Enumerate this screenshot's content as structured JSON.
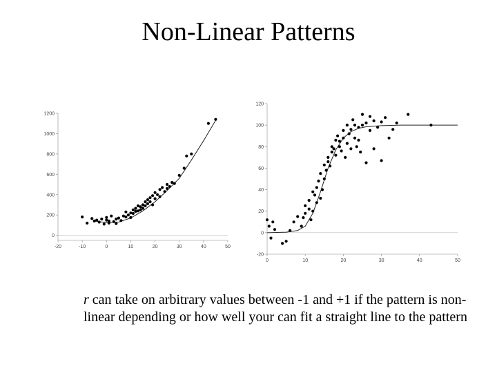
{
  "title": "Non-Linear Patterns",
  "body": {
    "variable": "r",
    "text": " can take on arbitrary values between -1 and +1 if the pattern is non-linear depending or how well your can fit a straight line to the pattern"
  },
  "chart_data": [
    {
      "type": "scatter",
      "title": "",
      "xlabel": "",
      "ylabel": "",
      "xlim": [
        -20,
        50
      ],
      "ylim": [
        -50,
        1200
      ],
      "x_ticks": [
        -20,
        -10,
        0,
        10,
        20,
        30,
        40,
        50
      ],
      "y_ticks": [
        0,
        200,
        400,
        600,
        800,
        1000,
        1200
      ],
      "x_tick_labels": [
        "-20",
        "-10",
        "0",
        "10",
        "20",
        "30",
        "40",
        "50"
      ],
      "y_tick_labels": [
        "0",
        "200",
        "400",
        "600",
        "800",
        "1000",
        "1200"
      ],
      "grid": false,
      "fit_curve": {
        "shape": "quadratic",
        "x": [
          -5,
          0,
          5,
          10,
          15,
          20,
          25,
          30,
          35,
          40,
          45
        ],
        "y": [
          140,
          125,
          130,
          170,
          240,
          330,
          440,
          560,
          740,
          930,
          1130
        ]
      },
      "points": {
        "x": [
          -10,
          -8,
          -6,
          -5,
          -4,
          -3,
          -2,
          -1,
          0,
          0,
          1,
          1,
          2,
          3,
          4,
          4,
          5,
          6,
          7,
          8,
          8,
          9,
          10,
          10,
          11,
          11,
          12,
          12,
          13,
          13,
          14,
          14,
          15,
          15,
          16,
          16,
          17,
          17,
          18,
          18,
          19,
          19,
          20,
          20,
          21,
          22,
          22,
          23,
          24,
          25,
          25,
          26,
          27,
          28,
          30,
          32,
          33,
          35,
          42,
          45
        ],
        "y": [
          180,
          120,
          165,
          140,
          150,
          130,
          160,
          110,
          150,
          175,
          120,
          140,
          190,
          135,
          115,
          160,
          170,
          145,
          190,
          180,
          230,
          200,
          175,
          220,
          250,
          215,
          235,
          265,
          240,
          290,
          250,
          280,
          300,
          265,
          330,
          290,
          350,
          310,
          370,
          330,
          300,
          390,
          360,
          420,
          400,
          380,
          450,
          470,
          430,
          500,
          460,
          480,
          520,
          510,
          590,
          660,
          780,
          800,
          1100,
          1140
        ]
      }
    },
    {
      "type": "scatter",
      "title": "",
      "xlabel": "",
      "ylabel": "",
      "xlim": [
        0,
        50
      ],
      "ylim": [
        -20,
        120
      ],
      "x_ticks": [
        0,
        10,
        20,
        30,
        40,
        50
      ],
      "y_ticks": [
        -20,
        0,
        20,
        40,
        60,
        80,
        100,
        120
      ],
      "x_tick_labels": [
        "0",
        "10",
        "20",
        "30",
        "40",
        "50"
      ],
      "y_tick_labels": [
        "-20",
        "0",
        "20",
        "40",
        "60",
        "80",
        "100",
        "120"
      ],
      "grid": false,
      "fit_curve": {
        "shape": "logistic",
        "x": [
          0,
          5,
          8,
          10,
          12,
          14,
          16,
          18,
          20,
          22,
          24,
          26,
          30,
          35,
          40,
          45,
          50
        ],
        "y": [
          0,
          0.5,
          2,
          6,
          18,
          38,
          60,
          77,
          88,
          94,
          97,
          98.5,
          99.5,
          100,
          100,
          100,
          100
        ]
      },
      "points": {
        "x": [
          0,
          0.5,
          1,
          1.5,
          2,
          4,
          5,
          6,
          7,
          8,
          9,
          9.5,
          10,
          10,
          11,
          11,
          11.5,
          12,
          12,
          12.5,
          13,
          13,
          13.5,
          14,
          14,
          14.5,
          15,
          15,
          15.5,
          16,
          16,
          16.5,
          17,
          17,
          17.5,
          18,
          18,
          18.5,
          19,
          19,
          19.5,
          20,
          20,
          20.5,
          21,
          21,
          21.5,
          22,
          22,
          22.5,
          23,
          23,
          23.5,
          24,
          24,
          24.5,
          25,
          25,
          26,
          26,
          27,
          27,
          28,
          28,
          29,
          30,
          30,
          31,
          32,
          33,
          34,
          37,
          43
        ],
        "y": [
          12,
          6,
          -5,
          10,
          3,
          -10,
          -8,
          2,
          10,
          15,
          6,
          14,
          18,
          25,
          22,
          30,
          12,
          38,
          20,
          35,
          28,
          42,
          48,
          32,
          55,
          40,
          50,
          63,
          58,
          70,
          66,
          62,
          80,
          75,
          78,
          86,
          72,
          90,
          80,
          85,
          76,
          95,
          88,
          70,
          100,
          83,
          92,
          78,
          96,
          105,
          88,
          100,
          80,
          98,
          86,
          75,
          110,
          100,
          102,
          65,
          108,
          95,
          78,
          104,
          98,
          67,
          103,
          107,
          88,
          96,
          102,
          110,
          100
        ]
      }
    }
  ]
}
